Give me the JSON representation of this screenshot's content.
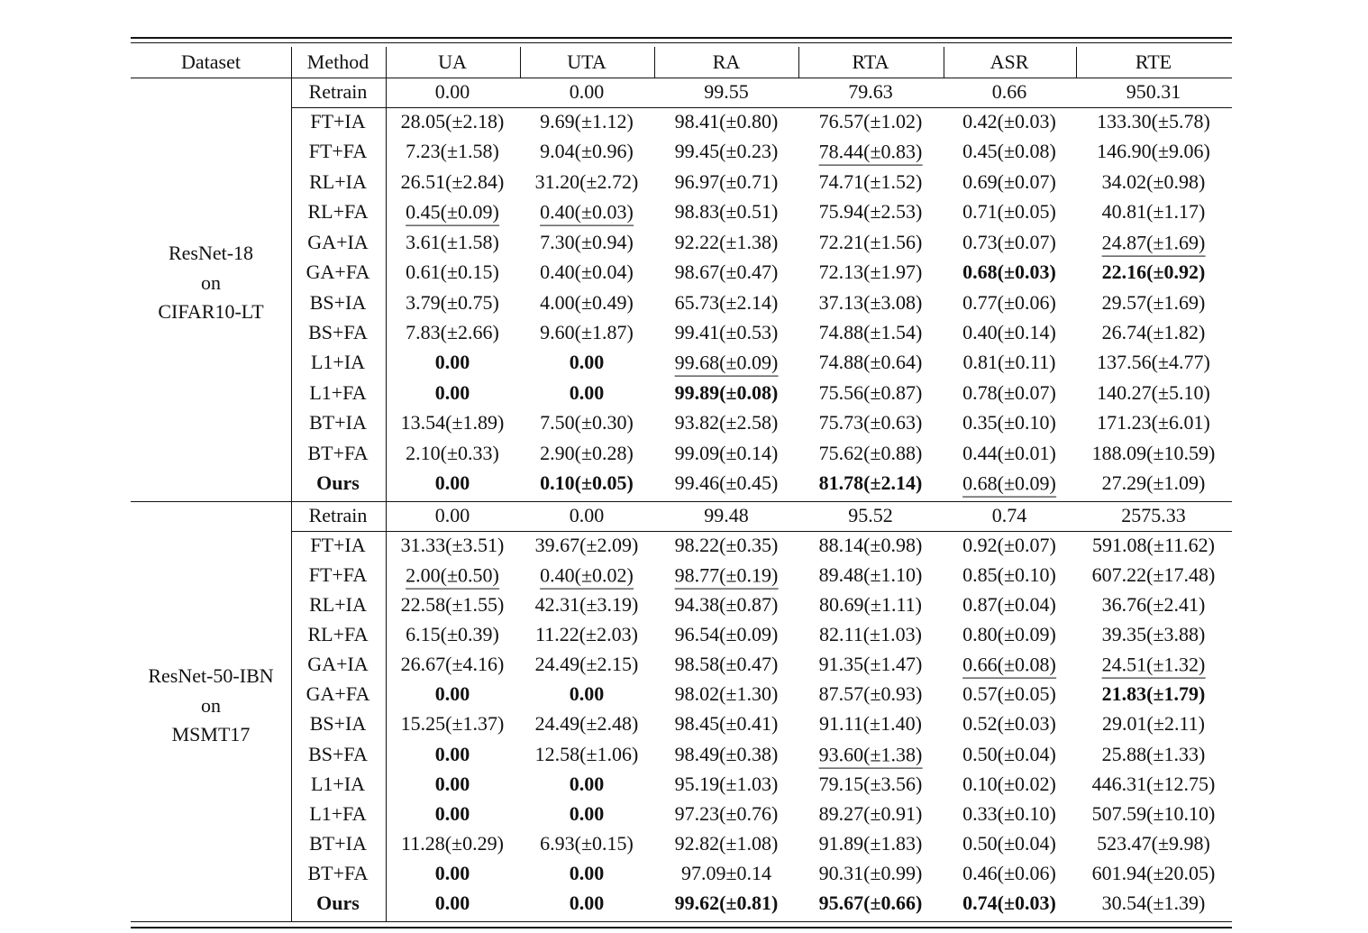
{
  "table": {
    "header": [
      "Dataset",
      "Method",
      "UA",
      "UTA",
      "RA",
      "RTA",
      "ASR",
      "RTE"
    ],
    "groups": [
      {
        "dataset": [
          "ResNet-18",
          "on",
          "CIFAR10-LT"
        ],
        "rows": [
          [
            "Retrain",
            "0.00",
            "0.00",
            "99.55",
            "79.63",
            "0.66",
            "950.31"
          ],
          [
            "FT+IA",
            "28.05(±2.18)",
            "9.69(±1.12)",
            "98.41(±0.80)",
            "76.57(±1.02)",
            "0.42(±0.03)",
            "133.30(±5.78)"
          ],
          [
            "FT+FA",
            "7.23(±1.58)",
            "9.04(±0.96)",
            "99.45(±0.23)",
            "78.44(±0.83)",
            "0.45(±0.08)",
            "146.90(±9.06)"
          ],
          [
            "RL+IA",
            "26.51(±2.84)",
            "31.20(±2.72)",
            "96.97(±0.71)",
            "74.71(±1.52)",
            "0.69(±0.07)",
            "34.02(±0.98)"
          ],
          [
            "RL+FA",
            "0.45(±0.09)",
            "0.40(±0.03)",
            "98.83(±0.51)",
            "75.94(±2.53)",
            "0.71(±0.05)",
            "40.81(±1.17)"
          ],
          [
            "GA+IA",
            "3.61(±1.58)",
            "7.30(±0.94)",
            "92.22(±1.38)",
            "72.21(±1.56)",
            "0.73(±0.07)",
            "24.87(±1.69)"
          ],
          [
            "GA+FA",
            "0.61(±0.15)",
            "0.40(±0.04)",
            "98.67(±0.47)",
            "72.13(±1.97)",
            "0.68(±0.03)",
            "22.16(±0.92)"
          ],
          [
            "BS+IA",
            "3.79(±0.75)",
            "4.00(±0.49)",
            "65.73(±2.14)",
            "37.13(±3.08)",
            "0.77(±0.06)",
            "29.57(±1.69)"
          ],
          [
            "BS+FA",
            "7.83(±2.66)",
            "9.60(±1.87)",
            "99.41(±0.53)",
            "74.88(±1.54)",
            "0.40(±0.14)",
            "26.74(±1.82)"
          ],
          [
            "L1+IA",
            "0.00",
            "0.00",
            "99.68(±0.09)",
            "74.88(±0.64)",
            "0.81(±0.11)",
            "137.56(±4.77)"
          ],
          [
            "L1+FA",
            "0.00",
            "0.00",
            "99.89(±0.08)",
            "75.56(±0.87)",
            "0.78(±0.07)",
            "140.27(±5.10)"
          ],
          [
            "BT+IA",
            "13.54(±1.89)",
            "7.50(±0.30)",
            "93.82(±2.58)",
            "75.73(±0.63)",
            "0.35(±0.10)",
            "171.23(±6.01)"
          ],
          [
            "BT+FA",
            "2.10(±0.33)",
            "2.90(±0.28)",
            "99.09(±0.14)",
            "75.62(±0.88)",
            "0.44(±0.01)",
            "188.09(±10.59)"
          ],
          [
            "Ours",
            "0.00",
            "0.10(±0.05)",
            "99.46(±0.45)",
            "81.78(±2.14)",
            "0.68(±0.09)",
            "27.29(±1.09)"
          ]
        ]
      },
      {
        "dataset": [
          "ResNet-50-IBN",
          "on",
          "MSMT17"
        ],
        "rows": [
          [
            "Retrain",
            "0.00",
            "0.00",
            "99.48",
            "95.52",
            "0.74",
            "2575.33"
          ],
          [
            "FT+IA",
            "31.33(±3.51)",
            "39.67(±2.09)",
            "98.22(±0.35)",
            "88.14(±0.98)",
            "0.92(±0.07)",
            "591.08(±11.62)"
          ],
          [
            "FT+FA",
            "2.00(±0.50)",
            "0.40(±0.02)",
            "98.77(±0.19)",
            "89.48(±1.10)",
            "0.85(±0.10)",
            "607.22(±17.48)"
          ],
          [
            "RL+IA",
            "22.58(±1.55)",
            "42.31(±3.19)",
            "94.38(±0.87)",
            "80.69(±1.11)",
            "0.87(±0.04)",
            "36.76(±2.41)"
          ],
          [
            "RL+FA",
            "6.15(±0.39)",
            "11.22(±2.03)",
            "96.54(±0.09)",
            "82.11(±1.03)",
            "0.80(±0.09)",
            "39.35(±3.88)"
          ],
          [
            "GA+IA",
            "26.67(±4.16)",
            "24.49(±2.15)",
            "98.58(±0.47)",
            "91.35(±1.47)",
            "0.66(±0.08)",
            "24.51(±1.32)"
          ],
          [
            "GA+FA",
            "0.00",
            "0.00",
            "98.02(±1.30)",
            "87.57(±0.93)",
            "0.57(±0.05)",
            "21.83(±1.79)"
          ],
          [
            "BS+IA",
            "15.25(±1.37)",
            "24.49(±2.48)",
            "98.45(±0.41)",
            "91.11(±1.40)",
            "0.52(±0.03)",
            "29.01(±2.11)"
          ],
          [
            "BS+FA",
            "0.00",
            "12.58(±1.06)",
            "98.49(±0.38)",
            "93.60(±1.38)",
            "0.50(±0.04)",
            "25.88(±1.33)"
          ],
          [
            "L1+IA",
            "0.00",
            "0.00",
            "95.19(±1.03)",
            "79.15(±3.56)",
            "0.10(±0.02)",
            "446.31(±12.75)"
          ],
          [
            "L1+FA",
            "0.00",
            "0.00",
            "97.23(±0.76)",
            "89.27(±0.91)",
            "0.33(±0.10)",
            "507.59(±10.10)"
          ],
          [
            "BT+IA",
            "11.28(±0.29)",
            "6.93(±0.15)",
            "92.82(±1.08)",
            "91.89(±1.83)",
            "0.50(±0.04)",
            "523.47(±9.98)"
          ],
          [
            "BT+FA",
            "0.00",
            "0.00",
            "97.09±0.14",
            "90.31(±0.99)",
            "0.46(±0.06)",
            "601.94(±20.05)"
          ],
          [
            "Ours",
            "0.00",
            "0.00",
            "99.62(±0.81)",
            "95.67(±0.66)",
            "0.74(±0.03)",
            "30.54(±1.39)"
          ]
        ]
      }
    ]
  }
}
